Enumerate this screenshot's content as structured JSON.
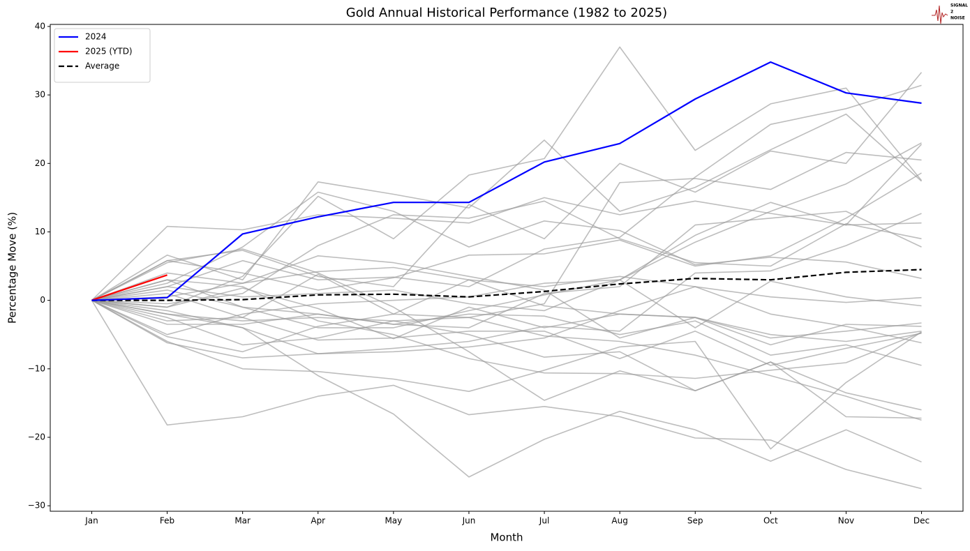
{
  "chart_data": {
    "type": "line",
    "title": "Gold Annual Historical Performance (1982 to 2025)",
    "xlabel": "Month",
    "ylabel": "Percentage Move (%)",
    "categories": [
      "Jan",
      "Feb",
      "Mar",
      "Apr",
      "May",
      "Jun",
      "Jul",
      "Aug",
      "Sep",
      "Oct",
      "Nov",
      "Dec"
    ],
    "ylim": [
      -30.8,
      40.3
    ],
    "yticks": [
      {
        "value": -30,
        "label": "−30"
      },
      {
        "value": -20,
        "label": "−20"
      },
      {
        "value": -10,
        "label": "−10"
      },
      0,
      10,
      20,
      30,
      40
    ],
    "legend": "upper left",
    "logo": [
      "SIGNAL",
      "2",
      "NOISE"
    ],
    "series": [
      {
        "name": "2024",
        "color": "#0000ff",
        "values": [
          0,
          0.4,
          9.7,
          12.2,
          14.3,
          14.3,
          20.2,
          22.9,
          29.4,
          34.8,
          30.3,
          28.8
        ]
      },
      {
        "name": "2025 (YTD)",
        "color": "#ff0000",
        "values": [
          0,
          3.7,
          null,
          null,
          null,
          null,
          null,
          null,
          null,
          null,
          null,
          null
        ]
      },
      {
        "name": "Average",
        "color": "#000000",
        "dashed": true,
        "values": [
          0,
          0,
          0.1,
          0.8,
          0.9,
          0.5,
          1.3,
          2.4,
          3.2,
          3.0,
          4.1,
          4.5
        ]
      },
      {
        "color": "#999999",
        "values": [
          0,
          10.8,
          10.3,
          12.5,
          12.0,
          11.3,
          15.0,
          12.5,
          14.5,
          12.7,
          11.0,
          11.3
        ]
      },
      {
        "color": "#999999",
        "values": [
          0,
          6.6,
          3.0,
          17.3,
          15.5,
          13.5,
          23.4,
          13.0,
          16.5,
          22.0,
          27.2,
          17.4
        ]
      },
      {
        "color": "#999999",
        "values": [
          0,
          -18.2,
          -17.0,
          -14.0,
          -12.4,
          -16.7,
          -15.5,
          -17.0,
          -20.1,
          -20.4,
          -24.7,
          -27.5
        ]
      },
      {
        "color": "#999999",
        "values": [
          0,
          -6.0,
          -10.0,
          -10.4,
          -11.5,
          -13.3,
          -10.2,
          -6.8,
          -6.0,
          -21.7,
          -12.0,
          -4.6
        ]
      },
      {
        "color": "#999999",
        "values": [
          0,
          -2.0,
          -4.0,
          -11.0,
          -16.6,
          -25.8,
          -20.3,
          -16.2,
          -18.9,
          -23.5,
          -18.9,
          -23.6
        ]
      },
      {
        "color": "#999999",
        "values": [
          0,
          5.5,
          7.5,
          4.0,
          -1.0,
          -7.5,
          -14.6,
          -10.3,
          -13.2,
          -9.0,
          -17.0,
          -17.2
        ]
      },
      {
        "color": "#999999",
        "values": [
          0,
          3.0,
          2.0,
          -3.0,
          -5.0,
          -8.5,
          -10.6,
          -10.7,
          -11.4,
          -10.2,
          -9.1,
          -4.7
        ]
      },
      {
        "color": "#999999",
        "values": [
          0,
          2.5,
          7.8,
          15.8,
          13.0,
          7.8,
          11.6,
          10.2,
          5.2,
          6.3,
          5.6,
          3.2
        ]
      },
      {
        "color": "#999999",
        "values": [
          0,
          -1.0,
          3.5,
          15.2,
          9.0,
          18.3,
          20.7,
          37.0,
          21.9,
          28.7,
          31.0,
          17.5
        ]
      },
      {
        "color": "#999999",
        "values": [
          0,
          5.8,
          7.3,
          3.5,
          2.0,
          14.0,
          9.0,
          20.0,
          15.8,
          21.8,
          20.0,
          33.3
        ]
      },
      {
        "color": "#999999",
        "values": [
          0,
          2.0,
          5.8,
          3.0,
          3.4,
          2.0,
          7.5,
          9.2,
          18.0,
          25.7,
          28.0,
          31.4
        ]
      },
      {
        "color": "#999999",
        "values": [
          0,
          -5.3,
          -7.5,
          -3.8,
          -2.0,
          -2.5,
          -0.5,
          17.2,
          17.8,
          16.2,
          21.6,
          20.5
        ]
      },
      {
        "color": "#999999",
        "values": [
          0,
          -1.5,
          -4.0,
          -7.8,
          -7.0,
          -6.0,
          -3.8,
          -4.5,
          4.0,
          4.3,
          8.0,
          12.7
        ]
      },
      {
        "color": "#999999",
        "values": [
          0,
          -0.5,
          1.0,
          8.0,
          12.5,
          12.0,
          14.5,
          9.0,
          5.5,
          5.0,
          11.2,
          9.0
        ]
      },
      {
        "color": "#999999",
        "values": [
          0,
          1.5,
          -1.0,
          -4.0,
          -4.0,
          -1.5,
          0.8,
          3.0,
          -4.0,
          2.8,
          0.5,
          -0.8
        ]
      },
      {
        "color": "#999999",
        "values": [
          0,
          -3.5,
          -3.5,
          -2.0,
          -3.5,
          -2.0,
          -2.3,
          -5.0,
          -3.0,
          -8.0,
          -6.5,
          -9.5
        ]
      },
      {
        "color": "#999999",
        "values": [
          0,
          -2.5,
          -6.5,
          -5.5,
          -3.0,
          -5.0,
          -8.3,
          -7.5,
          -13.2,
          -9.0,
          -13.5,
          -16.0
        ]
      },
      {
        "color": "#999999",
        "values": [
          0,
          4.0,
          2.5,
          6.5,
          5.5,
          3.5,
          1.5,
          -5.5,
          -2.5,
          -5.5,
          -4.5,
          -3.3
        ]
      },
      {
        "color": "#999999",
        "values": [
          0,
          0.5,
          2.5,
          4.2,
          4.8,
          3.0,
          2.0,
          3.5,
          2.0,
          0.5,
          -0.3,
          0.4
        ]
      },
      {
        "color": "#999999",
        "values": [
          0,
          -6.2,
          -8.4,
          -7.8,
          -7.5,
          -6.8,
          -5.5,
          -1.5,
          2.0,
          -2.0,
          -3.8,
          -6.2
        ]
      },
      {
        "color": "#999999",
        "values": [
          0,
          2.0,
          0.5,
          1.0,
          1.5,
          -0.5,
          -1.5,
          3.0,
          9.5,
          14.3,
          11.0,
          22.8
        ]
      },
      {
        "color": "#999999",
        "values": [
          0,
          -1.0,
          1.8,
          -1.2,
          -5.6,
          -1.0,
          -4.0,
          -2.0,
          -2.5,
          -5.0,
          -6.0,
          -4.5
        ]
      },
      {
        "color": "#999999",
        "values": [
          0,
          5.8,
          4.0,
          1.5,
          3.3,
          6.6,
          6.8,
          8.8,
          5.0,
          6.5,
          12.0,
          18.6
        ]
      },
      {
        "color": "#999999",
        "values": [
          0,
          -3.0,
          -2.5,
          -5.8,
          -5.5,
          -4.5,
          -4.5,
          -8.5,
          -4.5,
          -9.5,
          -7.0,
          -4.8
        ]
      },
      {
        "color": "#999999",
        "values": [
          0,
          1.0,
          -2.5,
          3.8,
          -2.0,
          3.0,
          -0.8,
          -2.0,
          -2.5,
          -6.5,
          -3.5,
          -3.8
        ]
      },
      {
        "color": "#999999",
        "values": [
          0,
          -2.0,
          -3.0,
          -2.5,
          -3.0,
          -2.5,
          -5.2,
          -6.0,
          -8.0,
          -11.0,
          -14.0,
          -17.5
        ]
      },
      {
        "color": "#999999",
        "values": [
          0,
          3.0,
          -1.0,
          -2.0,
          -3.5,
          -4.0,
          1.0,
          2.0,
          11.0,
          12.0,
          13.0,
          7.8
        ]
      },
      {
        "color": "#999999",
        "values": [
          0,
          -5.0,
          -2.0,
          -0.5,
          0.0,
          0.5,
          2.5,
          3.0,
          8.5,
          13.0,
          17.0,
          23.0
        ]
      }
    ]
  }
}
